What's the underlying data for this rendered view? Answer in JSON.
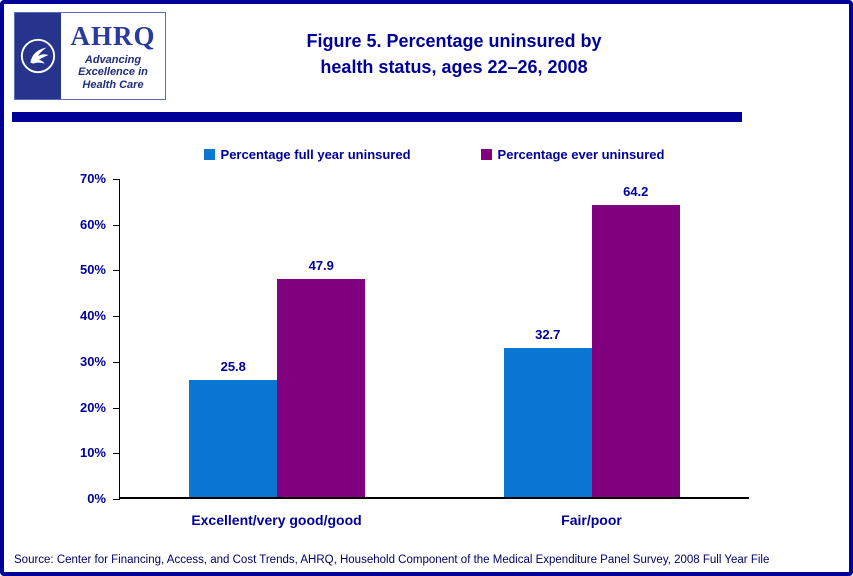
{
  "header": {
    "logo": {
      "acronym": "AHRQ",
      "tagline_line1": "Advancing",
      "tagline_line2": "Excellence in",
      "tagline_line3": "Health Care",
      "hhs_seal_icon": "hhs-eagle-seal-icon"
    },
    "title_line1": "Figure 5. Percentage uninsured by",
    "title_line2": "health status, ages 22–26, 2008"
  },
  "colors": {
    "navy": "#000099",
    "axis": "#000000",
    "series_full_year": "#0c77d2",
    "series_ever": "#800080"
  },
  "chart_data": {
    "type": "bar",
    "title": "Figure 5. Percentage uninsured by health status, ages 22–26, 2008",
    "categories": [
      "Excellent/very good/good",
      "Fair/poor"
    ],
    "series": [
      {
        "name": "Percentage full year uninsured",
        "values": [
          25.8,
          32.7
        ],
        "color": "#0c77d2"
      },
      {
        "name": "Percentage ever uninsured",
        "values": [
          47.9,
          64.2
        ],
        "color": "#800080"
      }
    ],
    "xlabel": "",
    "ylabel": "",
    "ylim": [
      0,
      70
    ],
    "ytick_step": 10,
    "yticks": [
      "0%",
      "10%",
      "20%",
      "30%",
      "40%",
      "50%",
      "60%",
      "70%"
    ],
    "grid": false,
    "legend_position": "top",
    "data_labels": true
  },
  "footer": {
    "source": "Source: Center for Financing, Access, and Cost Trends, AHRQ, Household Component of the Medical Expenditure Panel Survey, 2008 Full Year File"
  }
}
